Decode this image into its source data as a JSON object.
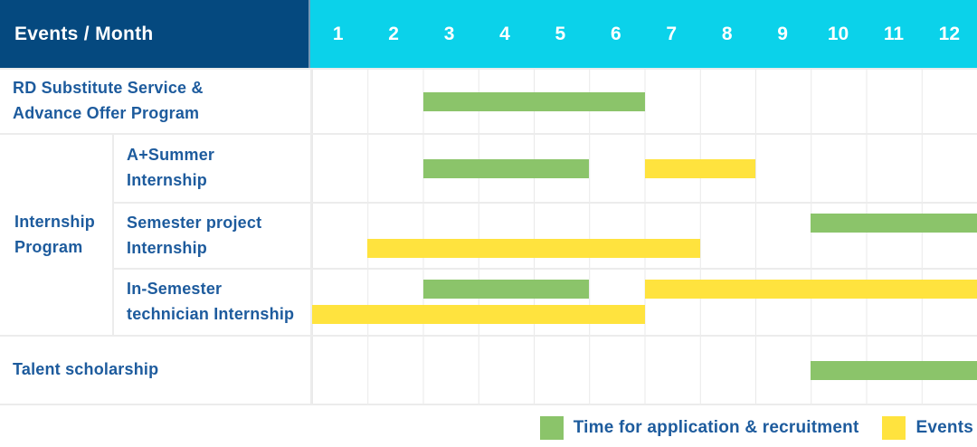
{
  "header": {
    "title": "Events / Month",
    "months": [
      "1",
      "2",
      "3",
      "4",
      "5",
      "6",
      "7",
      "8",
      "9",
      "10",
      "11",
      "12"
    ]
  },
  "colors": {
    "navy": "#05497F",
    "cyan": "#0BD2EA",
    "green": "#8BC46A",
    "yellow": "#FFE33E",
    "label_blue": "#1D5B9D",
    "grid": "#ECECEC"
  },
  "chart_data": {
    "type": "table",
    "subtype": "gantt",
    "x_unit": "month",
    "x_ticks": [
      "1",
      "2",
      "3",
      "4",
      "5",
      "6",
      "7",
      "8",
      "9",
      "10",
      "11",
      "12"
    ],
    "group_label": "Internship\nProgram",
    "series": [
      {
        "key": "application",
        "name": "Time for application & recruitment",
        "color_key": "green"
      },
      {
        "key": "events",
        "name": "Events",
        "color_key": "yellow"
      }
    ],
    "rows": [
      {
        "label": "RD Substitute Service &\nAdvance Offer Program",
        "group": "",
        "lines": 1,
        "bars": [
          {
            "series_key": "application",
            "color_key": "green",
            "start_month": 3,
            "end_month": 6,
            "line": 0
          }
        ]
      },
      {
        "label": "A+Summer\nInternship",
        "group": "Internship Program",
        "lines": 1,
        "bars": [
          {
            "series_key": "application",
            "color_key": "green",
            "start_month": 3,
            "end_month": 5,
            "line": 0
          },
          {
            "series_key": "events",
            "color_key": "yellow",
            "start_month": 7,
            "end_month": 8,
            "line": 0
          }
        ]
      },
      {
        "label": "Semester project\nInternship",
        "group": "Internship Program",
        "lines": 2,
        "bars": [
          {
            "series_key": "application",
            "color_key": "green",
            "start_month": 10,
            "end_month": 12,
            "line": 0
          },
          {
            "series_key": "events",
            "color_key": "yellow",
            "start_month": 2,
            "end_month": 7,
            "line": 1
          }
        ]
      },
      {
        "label": "In-Semester\ntechnician Internship",
        "group": "Internship Program",
        "lines": 2,
        "bars": [
          {
            "series_key": "application",
            "color_key": "green",
            "start_month": 3,
            "end_month": 5,
            "line": 0
          },
          {
            "series_key": "events",
            "color_key": "yellow",
            "start_month": 7,
            "end_month": 12,
            "line": 0
          },
          {
            "series_key": "events",
            "color_key": "yellow",
            "start_month": 1,
            "end_month": 6,
            "line": 1
          }
        ]
      },
      {
        "label": "Talent scholarship",
        "group": "",
        "lines": 1,
        "bars": [
          {
            "series_key": "application",
            "color_key": "green",
            "start_month": 10,
            "end_month": 12,
            "line": 0
          }
        ]
      }
    ]
  },
  "legend": {
    "items": [
      {
        "color_key": "green",
        "label": "Time for application & recruitment"
      },
      {
        "color_key": "yellow",
        "label": "Events"
      }
    ]
  }
}
